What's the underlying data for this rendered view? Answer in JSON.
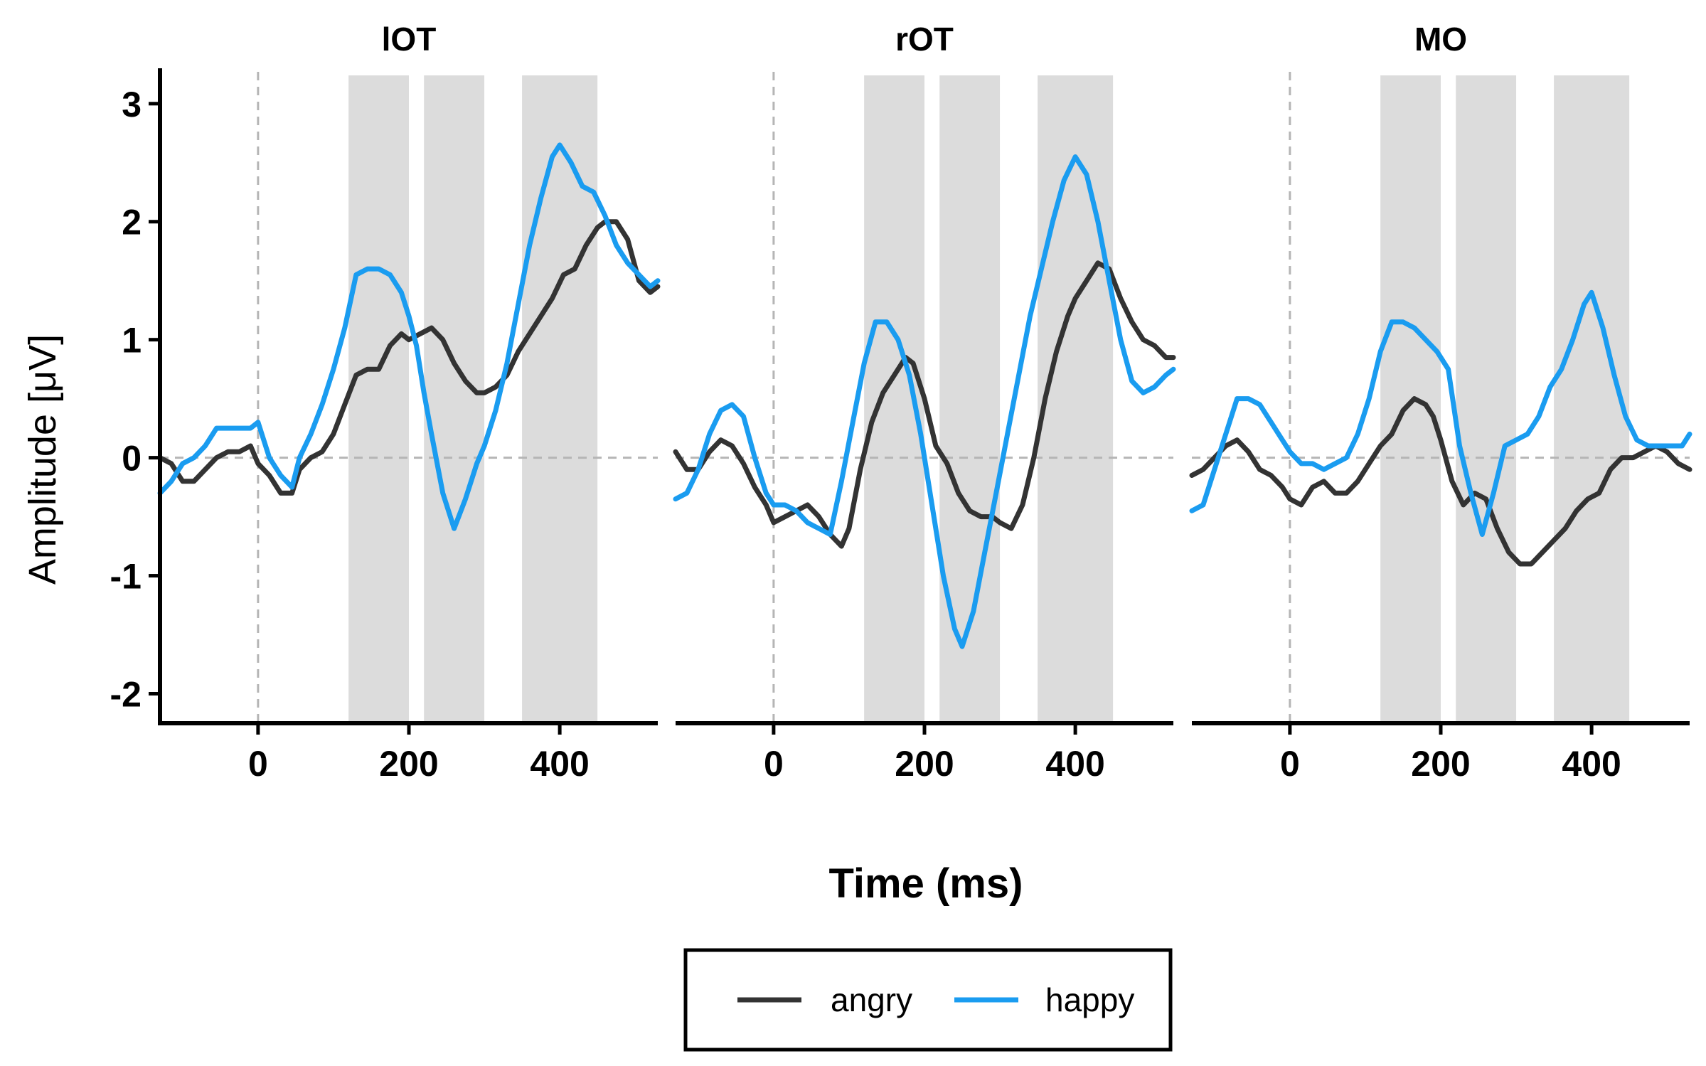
{
  "chart_data": {
    "type": "line",
    "xlabel": "Time (ms)",
    "ylabel": "Amplitude [μV]",
    "xlim": [
      -130,
      530
    ],
    "ylim": [
      -2.25,
      3.3
    ],
    "xticks": [
      0,
      200,
      400
    ],
    "yticks": [
      -2,
      -1,
      0,
      1,
      2,
      3
    ],
    "reference_lines": {
      "x": 0,
      "y": 0
    },
    "shaded_windows": [
      [
        120,
        200
      ],
      [
        220,
        300
      ],
      [
        350,
        450
      ]
    ],
    "grid": false,
    "legend": {
      "position": "bottom",
      "entries": [
        "angry",
        "happy"
      ]
    },
    "colors": {
      "angry": "#333333",
      "happy": "#1a9cf0",
      "shade": "#dcdcdc",
      "refline": "#b5b5b5"
    },
    "facets": [
      {
        "title": "lOT",
        "series": [
          {
            "name": "angry",
            "x": [
              -130,
              -115,
              -100,
              -85,
              -70,
              -55,
              -40,
              -25,
              -10,
              0,
              15,
              30,
              45,
              55,
              70,
              85,
              100,
              115,
              130,
              145,
              160,
              175,
              190,
              200,
              215,
              230,
              245,
              260,
              275,
              290,
              300,
              315,
              330,
              345,
              360,
              375,
              390,
              405,
              420,
              435,
              450,
              460,
              475,
              490,
              505,
              520,
              530
            ],
            "y": [
              0.0,
              -0.05,
              -0.2,
              -0.2,
              -0.1,
              0.0,
              0.05,
              0.05,
              0.1,
              -0.05,
              -0.15,
              -0.3,
              -0.3,
              -0.1,
              0.0,
              0.05,
              0.2,
              0.45,
              0.7,
              0.75,
              0.75,
              0.95,
              1.05,
              1.0,
              1.05,
              1.1,
              1.0,
              0.8,
              0.65,
              0.55,
              0.55,
              0.6,
              0.7,
              0.9,
              1.05,
              1.2,
              1.35,
              1.55,
              1.6,
              1.8,
              1.95,
              2.0,
              2.0,
              1.85,
              1.5,
              1.4,
              1.45
            ]
          },
          {
            "name": "happy",
            "x": [
              -130,
              -115,
              -100,
              -85,
              -70,
              -55,
              -40,
              -25,
              -10,
              0,
              15,
              30,
              45,
              55,
              70,
              85,
              100,
              115,
              130,
              145,
              160,
              175,
              190,
              200,
              210,
              220,
              230,
              245,
              260,
              275,
              290,
              300,
              315,
              330,
              345,
              360,
              375,
              390,
              400,
              415,
              430,
              445,
              460,
              475,
              490,
              505,
              520,
              530
            ],
            "y": [
              -0.3,
              -0.2,
              -0.05,
              0.0,
              0.1,
              0.25,
              0.25,
              0.25,
              0.25,
              0.3,
              0.0,
              -0.15,
              -0.25,
              0.0,
              0.2,
              0.45,
              0.75,
              1.1,
              1.55,
              1.6,
              1.6,
              1.55,
              1.4,
              1.2,
              0.95,
              0.55,
              0.2,
              -0.3,
              -0.6,
              -0.35,
              -0.05,
              0.1,
              0.4,
              0.8,
              1.3,
              1.8,
              2.2,
              2.55,
              2.65,
              2.5,
              2.3,
              2.25,
              2.05,
              1.8,
              1.65,
              1.55,
              1.45,
              1.5
            ]
          }
        ]
      },
      {
        "title": "rOT",
        "series": [
          {
            "name": "angry",
            "x": [
              -130,
              -115,
              -100,
              -85,
              -70,
              -55,
              -40,
              -25,
              -10,
              0,
              15,
              30,
              45,
              60,
              75,
              90,
              100,
              115,
              130,
              145,
              160,
              175,
              185,
              200,
              215,
              230,
              245,
              260,
              275,
              290,
              300,
              315,
              330,
              345,
              360,
              375,
              390,
              400,
              415,
              430,
              445,
              460,
              475,
              490,
              505,
              520,
              530
            ],
            "y": [
              0.05,
              -0.1,
              -0.1,
              0.05,
              0.15,
              0.1,
              -0.05,
              -0.25,
              -0.4,
              -0.55,
              -0.5,
              -0.45,
              -0.4,
              -0.5,
              -0.65,
              -0.75,
              -0.6,
              -0.1,
              0.3,
              0.55,
              0.7,
              0.85,
              0.8,
              0.5,
              0.1,
              -0.05,
              -0.3,
              -0.45,
              -0.5,
              -0.5,
              -0.55,
              -0.6,
              -0.4,
              0.0,
              0.5,
              0.9,
              1.2,
              1.35,
              1.5,
              1.65,
              1.6,
              1.35,
              1.15,
              1.0,
              0.95,
              0.85,
              0.85
            ]
          },
          {
            "name": "happy",
            "x": [
              -130,
              -115,
              -100,
              -85,
              -70,
              -55,
              -40,
              -25,
              -10,
              0,
              15,
              30,
              45,
              60,
              75,
              90,
              105,
              120,
              135,
              150,
              165,
              180,
              195,
              210,
              225,
              240,
              250,
              265,
              280,
              295,
              310,
              325,
              340,
              355,
              370,
              385,
              400,
              415,
              430,
              445,
              460,
              475,
              490,
              505,
              520,
              530
            ],
            "y": [
              -0.35,
              -0.3,
              -0.1,
              0.2,
              0.4,
              0.45,
              0.35,
              0.0,
              -0.3,
              -0.4,
              -0.4,
              -0.45,
              -0.55,
              -0.6,
              -0.65,
              -0.2,
              0.3,
              0.8,
              1.15,
              1.15,
              1.0,
              0.7,
              0.2,
              -0.4,
              -1.0,
              -1.45,
              -1.6,
              -1.3,
              -0.8,
              -0.3,
              0.2,
              0.7,
              1.2,
              1.6,
              2.0,
              2.35,
              2.55,
              2.4,
              2.0,
              1.5,
              1.0,
              0.65,
              0.55,
              0.6,
              0.7,
              0.75
            ]
          }
        ]
      },
      {
        "title": "MO",
        "series": [
          {
            "name": "angry",
            "x": [
              -130,
              -115,
              -100,
              -85,
              -70,
              -55,
              -40,
              -25,
              -10,
              0,
              15,
              30,
              45,
              60,
              75,
              90,
              105,
              120,
              135,
              150,
              165,
              180,
              190,
              200,
              215,
              230,
              245,
              260,
              275,
              290,
              305,
              320,
              335,
              350,
              365,
              380,
              395,
              410,
              425,
              440,
              455,
              470,
              485,
              500,
              515,
              530
            ],
            "y": [
              -0.15,
              -0.1,
              0.0,
              0.1,
              0.15,
              0.05,
              -0.1,
              -0.15,
              -0.25,
              -0.35,
              -0.4,
              -0.25,
              -0.2,
              -0.3,
              -0.3,
              -0.2,
              -0.05,
              0.1,
              0.2,
              0.4,
              0.5,
              0.45,
              0.35,
              0.15,
              -0.2,
              -0.4,
              -0.3,
              -0.35,
              -0.6,
              -0.8,
              -0.9,
              -0.9,
              -0.8,
              -0.7,
              -0.6,
              -0.45,
              -0.35,
              -0.3,
              -0.1,
              0.0,
              0.0,
              0.05,
              0.1,
              0.05,
              -0.05,
              -0.1
            ]
          },
          {
            "name": "happy",
            "x": [
              -130,
              -115,
              -100,
              -85,
              -70,
              -55,
              -40,
              -25,
              -10,
              0,
              15,
              30,
              45,
              60,
              75,
              90,
              105,
              120,
              135,
              150,
              165,
              180,
              195,
              210,
              225,
              240,
              255,
              270,
              285,
              300,
              315,
              330,
              345,
              360,
              375,
              390,
              400,
              415,
              430,
              445,
              460,
              475,
              490,
              505,
              520,
              530
            ],
            "y": [
              -0.45,
              -0.4,
              -0.1,
              0.2,
              0.5,
              0.5,
              0.45,
              0.3,
              0.15,
              0.05,
              -0.05,
              -0.05,
              -0.1,
              -0.05,
              0.0,
              0.2,
              0.5,
              0.9,
              1.15,
              1.15,
              1.1,
              1.0,
              0.9,
              0.75,
              0.1,
              -0.3,
              -0.65,
              -0.3,
              0.1,
              0.15,
              0.2,
              0.35,
              0.6,
              0.75,
              1.0,
              1.3,
              1.4,
              1.1,
              0.7,
              0.35,
              0.15,
              0.1,
              0.1,
              0.1,
              0.1,
              0.2
            ]
          }
        ]
      }
    ]
  }
}
